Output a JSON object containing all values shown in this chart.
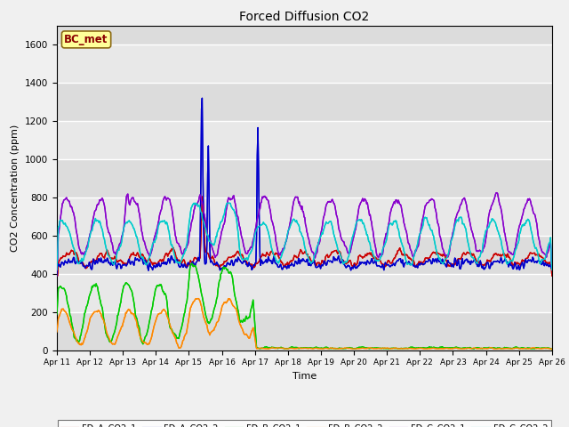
{
  "title": "Forced Diffusion CO2",
  "ylabel": "CO2 Concentration (ppm)",
  "xlabel": "Time",
  "ylim": [
    0,
    1700
  ],
  "plot_bg": "#dcdcdc",
  "fig_bg": "#f0f0f0",
  "annotation_text": "BC_met",
  "annotation_bg": "#ffff99",
  "annotation_border": "#8b0000",
  "series": {
    "FD_A_CO2_1": {
      "color": "#cc0000",
      "lw": 1.0
    },
    "FD_A_CO2_2": {
      "color": "#0000cc",
      "lw": 1.0
    },
    "FD_B_CO2_1": {
      "color": "#00cc00",
      "lw": 1.0
    },
    "FD_B_CO2_2": {
      "color": "#ff8800",
      "lw": 1.0
    },
    "FD_C_CO2_1": {
      "color": "#8800cc",
      "lw": 1.0
    },
    "FD_C_CO2_2": {
      "color": "#00cccc",
      "lw": 1.0
    }
  },
  "xtick_labels": [
    "Apr 11",
    "Apr 12",
    "Apr 13",
    "Apr 14",
    "Apr 15",
    "Apr 16",
    "Apr 17",
    "Apr 18",
    "Apr 19",
    "Apr 20",
    "Apr 21",
    "Apr 22",
    "Apr 23",
    "Apr 24",
    "Apr 25",
    "Apr 26"
  ],
  "ytick_values": [
    0,
    200,
    400,
    600,
    800,
    1000,
    1200,
    1400,
    1600
  ],
  "ytick_labels": [
    "0",
    "200",
    "400",
    "600",
    "800",
    "1000",
    "1200",
    "1400",
    "1600"
  ]
}
